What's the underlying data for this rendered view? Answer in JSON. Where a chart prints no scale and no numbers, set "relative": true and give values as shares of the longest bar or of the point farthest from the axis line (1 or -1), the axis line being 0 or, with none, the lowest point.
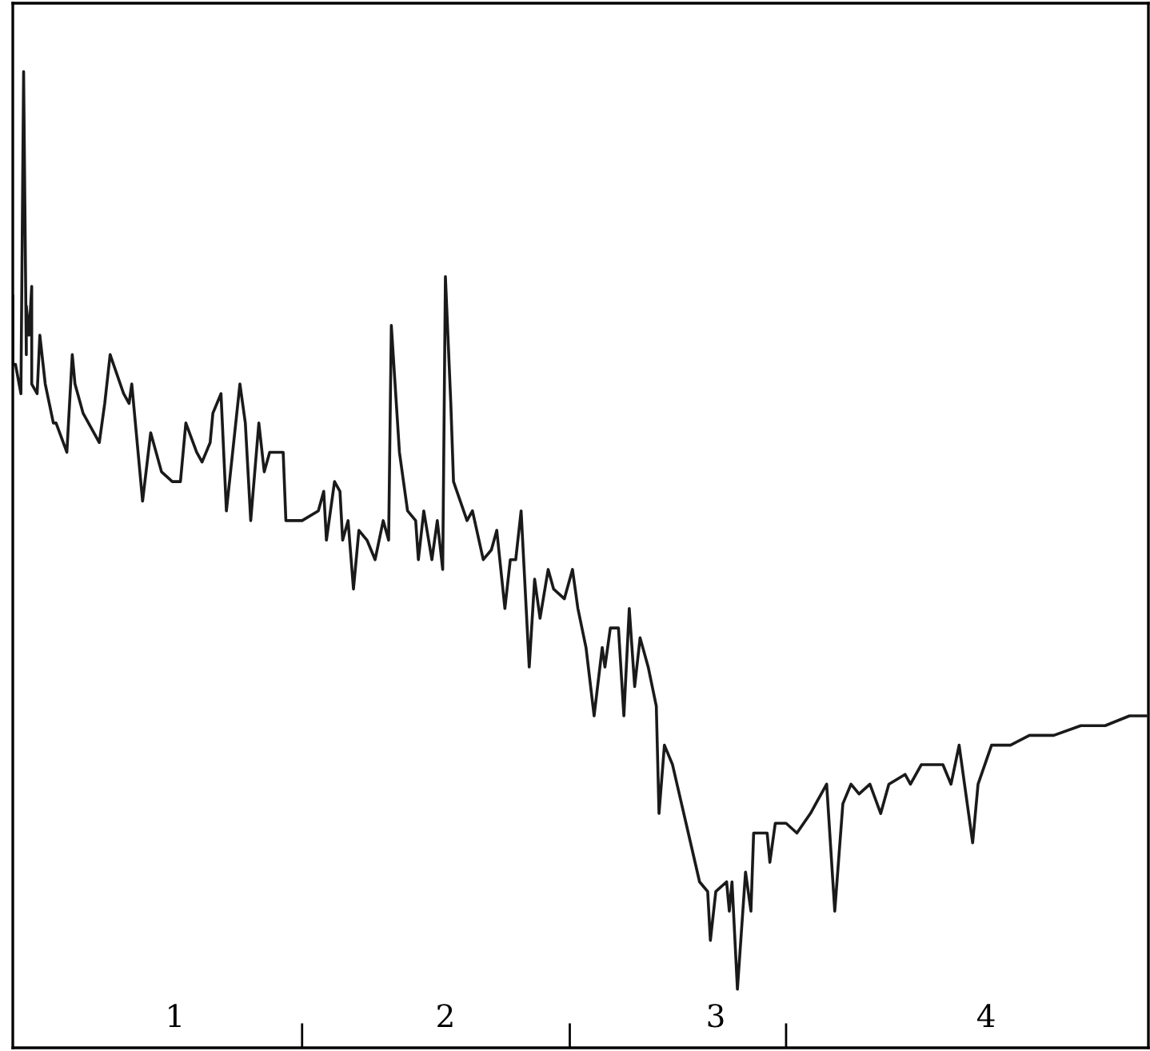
{
  "chart_data": {
    "type": "line",
    "relative": true,
    "grid": false,
    "legend": false,
    "tick_labels": "x",
    "marker": "none",
    "line_style": "solid",
    "xlim": [
      0.4,
      4.6
    ],
    "xticks": [
      1,
      {
        "value": 1.47,
        "label": null
      },
      2,
      {
        "value": 2.46,
        "label": null
      },
      3,
      {
        "value": 3.26,
        "label": null
      },
      4
    ],
    "series": [
      {
        "color": "#1a1a1a",
        "x": [
          0.4,
          0.4,
          0.41,
          0.43,
          0.44,
          0.45,
          0.45,
          0.46,
          0.47,
          0.47,
          0.49,
          0.5,
          0.52,
          0.55,
          0.56,
          0.6,
          0.62,
          0.63,
          0.66,
          0.72,
          0.74,
          0.76,
          0.81,
          0.83,
          0.84,
          0.88,
          0.91,
          0.95,
          0.99,
          1.02,
          1.04,
          1.08,
          1.1,
          1.13,
          1.14,
          1.17,
          1.19,
          1.24,
          1.26,
          1.28,
          1.31,
          1.33,
          1.35,
          1.4,
          1.41,
          1.47,
          1.53,
          1.55,
          1.56,
          1.59,
          1.61,
          1.62,
          1.64,
          1.66,
          1.68,
          1.71,
          1.74,
          1.77,
          1.79,
          1.8,
          1.83,
          1.86,
          1.89,
          1.9,
          1.92,
          1.95,
          1.97,
          1.99,
          2.0,
          2.02,
          2.03,
          2.08,
          2.1,
          2.14,
          2.17,
          2.19,
          2.22,
          2.24,
          2.26,
          2.28,
          2.31,
          2.33,
          2.35,
          2.38,
          2.4,
          2.44,
          2.47,
          2.49,
          2.52,
          2.55,
          2.58,
          2.59,
          2.61,
          2.64,
          2.66,
          2.68,
          2.7,
          2.72,
          2.75,
          2.78,
          2.79,
          2.81,
          2.84,
          2.89,
          2.94,
          2.97,
          2.98,
          3.0,
          3.04,
          3.05,
          3.06,
          3.08,
          3.11,
          3.13,
          3.14,
          3.19,
          3.2,
          3.22,
          3.26,
          3.3,
          3.35,
          3.41,
          3.44,
          3.47,
          3.5,
          3.53,
          3.57,
          3.61,
          3.64,
          3.7,
          3.72,
          3.76,
          3.84,
          3.87,
          3.9,
          3.92,
          3.95,
          3.97,
          4.02,
          4.09,
          4.16,
          4.25,
          4.35,
          4.44,
          4.53,
          4.59
        ],
        "values": [
          0.77,
          0.7,
          0.7,
          0.67,
          1.0,
          0.71,
          0.76,
          0.73,
          0.78,
          0.68,
          0.67,
          0.73,
          0.68,
          0.64,
          0.64,
          0.61,
          0.71,
          0.68,
          0.65,
          0.62,
          0.66,
          0.71,
          0.67,
          0.66,
          0.68,
          0.56,
          0.63,
          0.59,
          0.58,
          0.58,
          0.64,
          0.61,
          0.6,
          0.62,
          0.65,
          0.67,
          0.55,
          0.68,
          0.64,
          0.54,
          0.64,
          0.59,
          0.61,
          0.61,
          0.54,
          0.54,
          0.55,
          0.57,
          0.52,
          0.58,
          0.57,
          0.52,
          0.54,
          0.47,
          0.53,
          0.52,
          0.5,
          0.54,
          0.52,
          0.74,
          0.61,
          0.55,
          0.54,
          0.5,
          0.55,
          0.5,
          0.54,
          0.49,
          0.79,
          0.66,
          0.58,
          0.54,
          0.55,
          0.5,
          0.51,
          0.53,
          0.45,
          0.5,
          0.5,
          0.55,
          0.39,
          0.48,
          0.44,
          0.49,
          0.47,
          0.46,
          0.49,
          0.45,
          0.41,
          0.34,
          0.41,
          0.39,
          0.43,
          0.43,
          0.34,
          0.45,
          0.37,
          0.42,
          0.39,
          0.35,
          0.24,
          0.31,
          0.29,
          0.23,
          0.17,
          0.16,
          0.11,
          0.16,
          0.17,
          0.14,
          0.17,
          0.06,
          0.18,
          0.14,
          0.22,
          0.22,
          0.19,
          0.23,
          0.23,
          0.22,
          0.24,
          0.27,
          0.14,
          0.25,
          0.27,
          0.26,
          0.27,
          0.24,
          0.27,
          0.28,
          0.27,
          0.29,
          0.29,
          0.27,
          0.31,
          0.27,
          0.21,
          0.27,
          0.31,
          0.31,
          0.32,
          0.32,
          0.33,
          0.33,
          0.34,
          0.34
        ]
      }
    ]
  }
}
